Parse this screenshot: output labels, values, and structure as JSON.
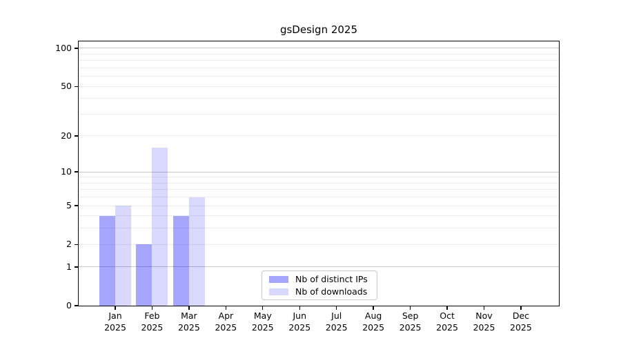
{
  "chart_data": {
    "type": "bar",
    "title": "gsDesign 2025",
    "year_label": "2025",
    "categories": [
      "Jan",
      "Feb",
      "Mar",
      "Apr",
      "May",
      "Jun",
      "Jul",
      "Aug",
      "Sep",
      "Oct",
      "Nov",
      "Dec"
    ],
    "series": [
      {
        "name": "Nb of distinct IPs",
        "color": "rgba(0,0,255,0.35)",
        "values": [
          4,
          2,
          4,
          0,
          0,
          0,
          0,
          0,
          0,
          0,
          0,
          0
        ]
      },
      {
        "name": "Nb of downloads",
        "color": "rgba(0,0,255,0.15)",
        "values": [
          5,
          16,
          6,
          0,
          0,
          0,
          0,
          0,
          0,
          0,
          0,
          0
        ]
      }
    ],
    "scale": "log1p",
    "yticks": [
      0,
      1,
      2,
      5,
      10,
      20,
      50,
      100
    ],
    "ylim": [
      0,
      113
    ],
    "gridlines": {
      "major": [
        1,
        10,
        100
      ],
      "minor": [
        2,
        3,
        4,
        5,
        6,
        7,
        8,
        9,
        20,
        30,
        40,
        50,
        60,
        70,
        80,
        90
      ]
    },
    "colors": {
      "major_grid": "#c6c6c6",
      "minor_grid": "#ececec",
      "axis": "#000000",
      "legend_border": "#c9c9c9"
    },
    "legend_position": "lower-center-inside",
    "grid": true
  }
}
